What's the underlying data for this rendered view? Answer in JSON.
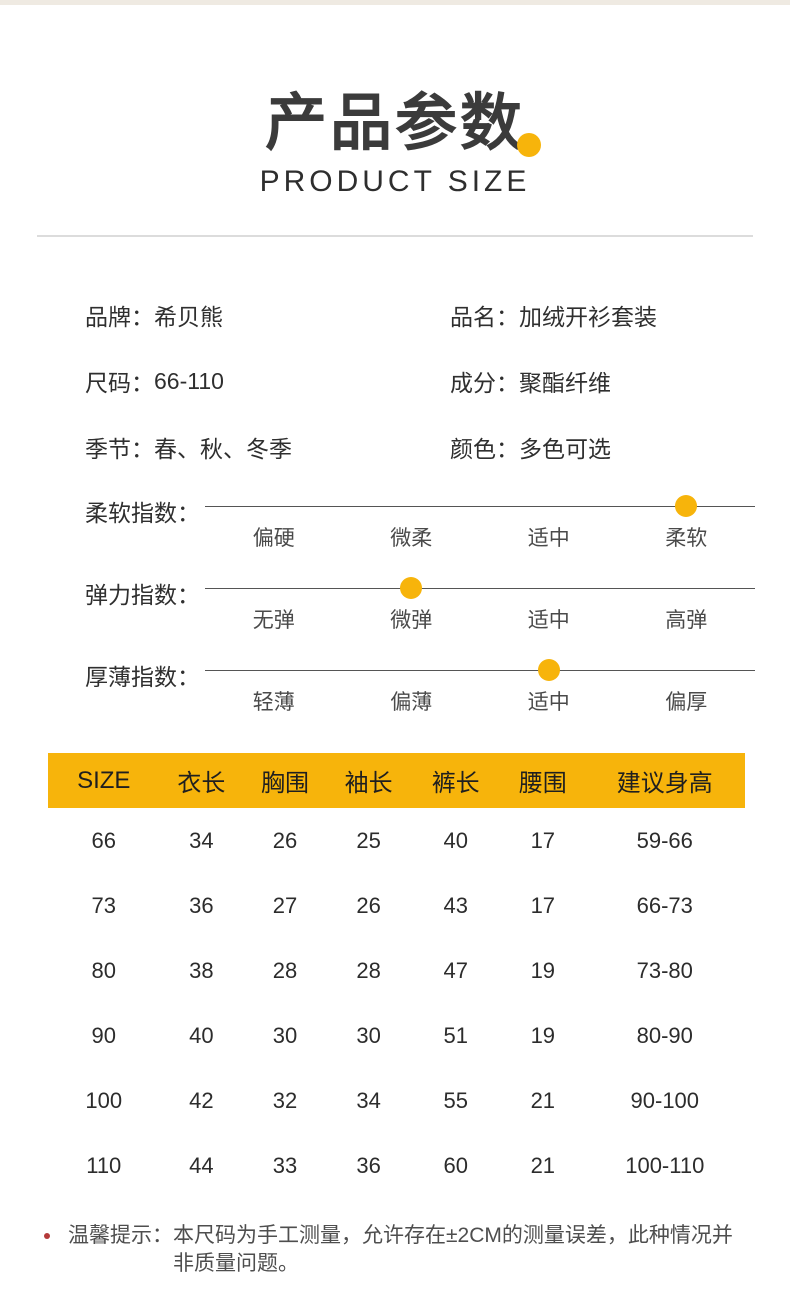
{
  "theme": {
    "accent": "#F7B40B",
    "divider": "#dcdcdc",
    "note_bullet": "#b43a3a"
  },
  "header": {
    "title": "产品参数",
    "subtitle": "PRODUCT SIZE"
  },
  "info": {
    "rows": [
      [
        {
          "label": "品牌：",
          "value": "希贝熊"
        },
        {
          "label": "品名：",
          "value": "加绒开衫套装"
        }
      ],
      [
        {
          "label": "尺码：",
          "value": "66-110"
        },
        {
          "label": "成分：",
          "value": "聚酯纤维"
        }
      ],
      [
        {
          "label": "季节：",
          "value": "春、秋、冬季"
        },
        {
          "label": "颜色：",
          "value": "多色可选"
        }
      ]
    ]
  },
  "sliders": [
    {
      "label": "柔软指数：",
      "options": [
        "偏硬",
        "微柔",
        "适中",
        "柔软"
      ],
      "active": 3
    },
    {
      "label": "弹力指数：",
      "options": [
        "无弹",
        "微弹",
        "适中",
        "高弹"
      ],
      "active": 1
    },
    {
      "label": "厚薄指数：",
      "options": [
        "轻薄",
        "偏薄",
        "适中",
        "偏厚"
      ],
      "active": 2
    }
  ],
  "size_table": {
    "headers": [
      "SIZE",
      "衣长",
      "胸围",
      "袖长",
      "裤长",
      "腰围",
      "建议身高"
    ],
    "rows": [
      [
        "66",
        "34",
        "26",
        "25",
        "40",
        "17",
        "59-66"
      ],
      [
        "73",
        "36",
        "27",
        "26",
        "43",
        "17",
        "66-73"
      ],
      [
        "80",
        "38",
        "28",
        "28",
        "47",
        "19",
        "73-80"
      ],
      [
        "90",
        "40",
        "30",
        "30",
        "51",
        "19",
        "80-90"
      ],
      [
        "100",
        "42",
        "32",
        "34",
        "55",
        "21",
        "90-100"
      ],
      [
        "110",
        "44",
        "33",
        "36",
        "60",
        "21",
        "100-110"
      ]
    ]
  },
  "note": {
    "label": "温馨提示：",
    "text": "本尺码为手工测量，允许存在±2CM的测量误差，此种情况并非质量问题。"
  }
}
